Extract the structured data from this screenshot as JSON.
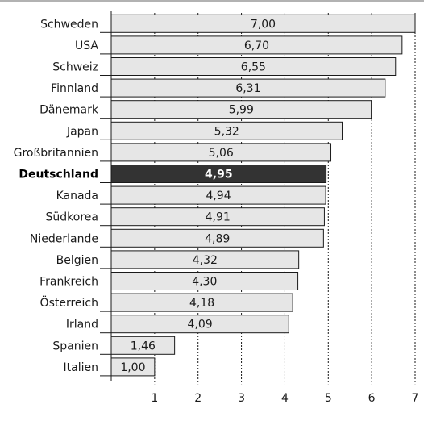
{
  "chart_data": {
    "type": "bar",
    "orientation": "horizontal",
    "categories": [
      "Schweden",
      "USA",
      "Schweiz",
      "Finnland",
      "Dänemark",
      "Japan",
      "Großbritannien",
      "Deutschland",
      "Kanada",
      "Südkorea",
      "Niederlande",
      "Belgien",
      "Frankreich",
      "Österreich",
      "Irland",
      "Spanien",
      "Italien"
    ],
    "values": [
      7.0,
      6.7,
      6.55,
      6.31,
      5.99,
      5.32,
      5.06,
      4.95,
      4.94,
      4.91,
      4.89,
      4.32,
      4.3,
      4.18,
      4.09,
      1.46,
      1.0
    ],
    "value_labels": [
      "7,00",
      "6,70",
      "6,55",
      "6,31",
      "5,99",
      "5,32",
      "5,06",
      "4,95",
      "4,94",
      "4,91",
      "4,89",
      "4,32",
      "4,30",
      "4,18",
      "4,09",
      "1,46",
      "1,00"
    ],
    "highlight": "Deutschland",
    "xlim": [
      0,
      7
    ],
    "xticks": [
      1,
      2,
      3,
      4,
      5,
      6,
      7
    ],
    "xtick_labels": [
      "1",
      "2",
      "3",
      "4",
      "5",
      "6",
      "7"
    ],
    "grid": "vertical dashed",
    "colors": {
      "bar": "#e6e6e6",
      "bar_highlight": "#333333",
      "bar_stroke": "#1a1a1a",
      "grid": "#1a1a1a"
    }
  }
}
